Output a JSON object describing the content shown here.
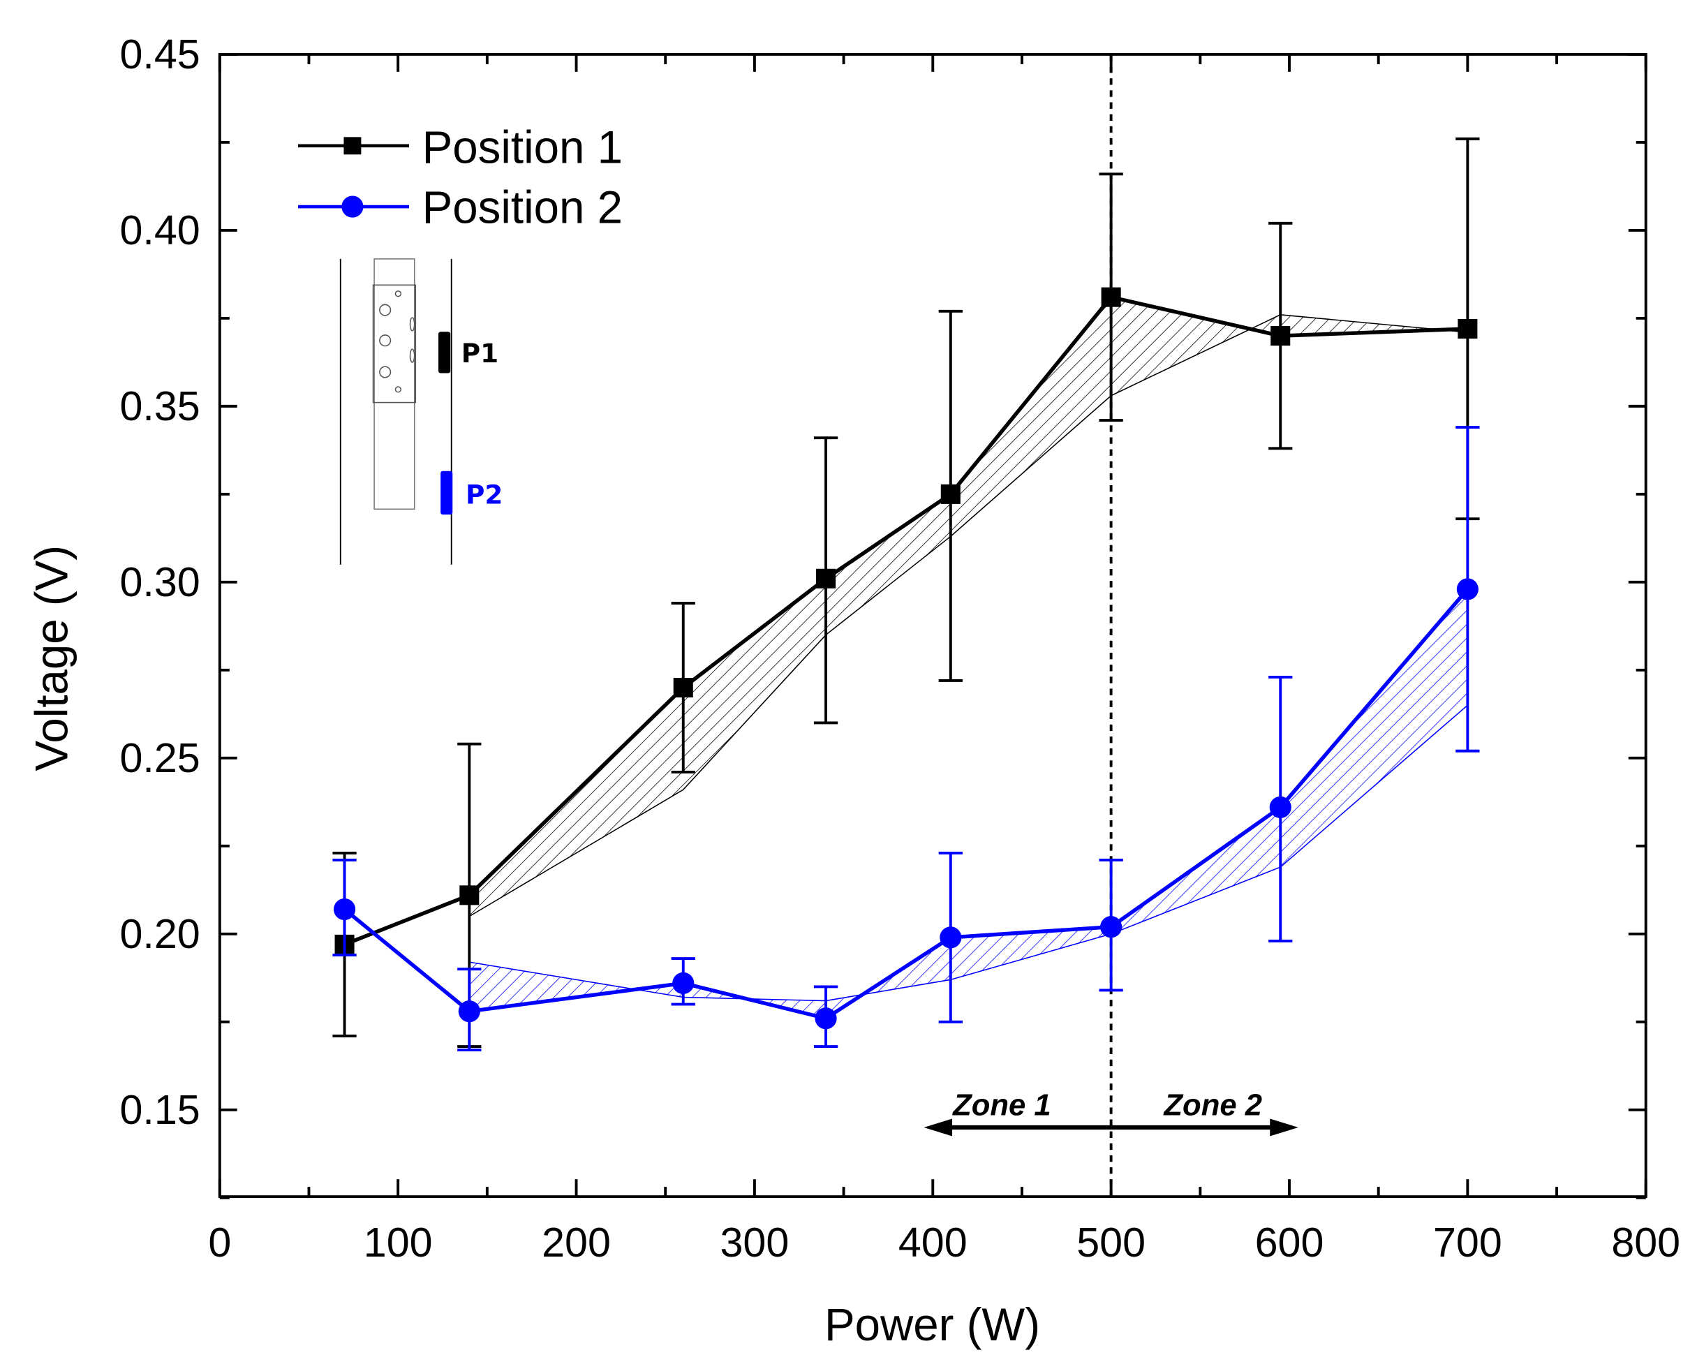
{
  "chart_data": {
    "type": "line",
    "title": "",
    "xlabel": "Power (W)",
    "ylabel": "Voltage (V)",
    "xlim": [
      0,
      800
    ],
    "ylim": [
      0.125,
      0.45
    ],
    "xticks": [
      "0",
      "100",
      "200",
      "300",
      "400",
      "500",
      "600",
      "700",
      "800"
    ],
    "yticks": [
      "0.15",
      "0.20",
      "0.25",
      "0.30",
      "0.35",
      "0.40",
      "0.45"
    ],
    "grid": false,
    "legend_placement": "top-left",
    "series": [
      {
        "name": "Position 1",
        "color": "#000000",
        "marker": "square",
        "x": [
          70,
          140,
          260,
          340,
          410,
          500,
          595,
          700
        ],
        "y": [
          0.197,
          0.211,
          0.27,
          0.301,
          0.325,
          0.381,
          0.37,
          0.372
        ],
        "err_low": [
          0.171,
          0.168,
          0.246,
          0.26,
          0.272,
          0.346,
          0.338,
          0.318
        ],
        "err_high": [
          0.223,
          0.254,
          0.294,
          0.341,
          0.377,
          0.416,
          0.402,
          0.426
        ],
        "hatch_bound": {
          "x": [
            140,
            260,
            340,
            410,
            500,
            595,
            700
          ],
          "y": [
            0.205,
            0.241,
            0.285,
            0.313,
            0.353,
            0.376,
            0.371
          ]
        }
      },
      {
        "name": "Position 2",
        "color": "#0000ff",
        "marker": "circle",
        "x": [
          70,
          140,
          260,
          340,
          410,
          500,
          595,
          700
        ],
        "y": [
          0.207,
          0.178,
          0.186,
          0.176,
          0.199,
          0.202,
          0.236,
          0.298
        ],
        "err_low": [
          0.194,
          0.167,
          0.18,
          0.168,
          0.175,
          0.184,
          0.198,
          0.252
        ],
        "err_high": [
          0.221,
          0.19,
          0.193,
          0.185,
          0.223,
          0.221,
          0.273,
          0.344
        ],
        "hatch_bound": {
          "x": [
            140,
            260,
            340,
            410,
            500,
            595,
            700
          ],
          "y": [
            0.192,
            0.182,
            0.181,
            0.187,
            0.2,
            0.219,
            0.265
          ]
        }
      }
    ],
    "annotations": {
      "divider_x": 500,
      "zone1": "Zone 1",
      "zone2": "Zone 2",
      "zone_arrow_range": [
        395,
        605
      ],
      "zone_arrow_y": 0.145,
      "inset_p1": "P1",
      "inset_p2": "P2"
    }
  }
}
